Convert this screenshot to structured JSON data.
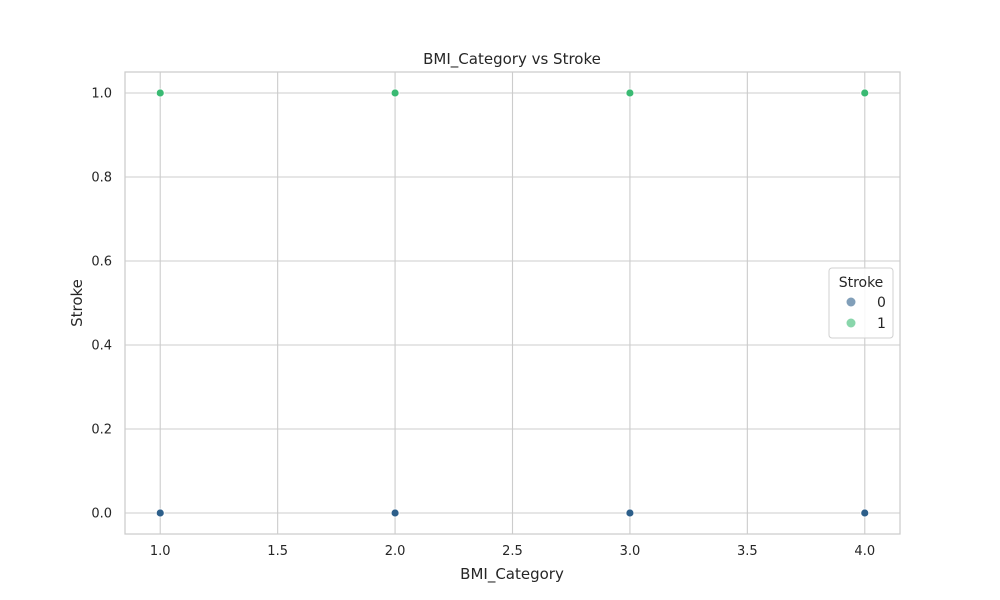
{
  "chart_data": {
    "type": "scatter",
    "title": "BMI_Category vs Stroke",
    "xlabel": "BMI_Category",
    "ylabel": "Stroke",
    "xlim": [
      0.85,
      4.15
    ],
    "ylim": [
      -0.05,
      1.05
    ],
    "xticks": [
      "1.0",
      "1.5",
      "2.0",
      "2.5",
      "3.0",
      "3.5",
      "4.0"
    ],
    "yticks": [
      "0.0",
      "0.2",
      "0.4",
      "0.6",
      "0.8",
      "1.0"
    ],
    "grid": true,
    "legend": {
      "title": "Stroke",
      "position": "right",
      "entries": [
        "0",
        "1"
      ]
    },
    "series": [
      {
        "name": "0",
        "color": "#2d5f8a",
        "points": [
          [
            1,
            0
          ],
          [
            2,
            0
          ],
          [
            3,
            0
          ],
          [
            4,
            0
          ]
        ]
      },
      {
        "name": "1",
        "color": "#3aba73",
        "points": [
          [
            1,
            1
          ],
          [
            2,
            1
          ],
          [
            3,
            1
          ],
          [
            4,
            1
          ]
        ]
      }
    ]
  }
}
